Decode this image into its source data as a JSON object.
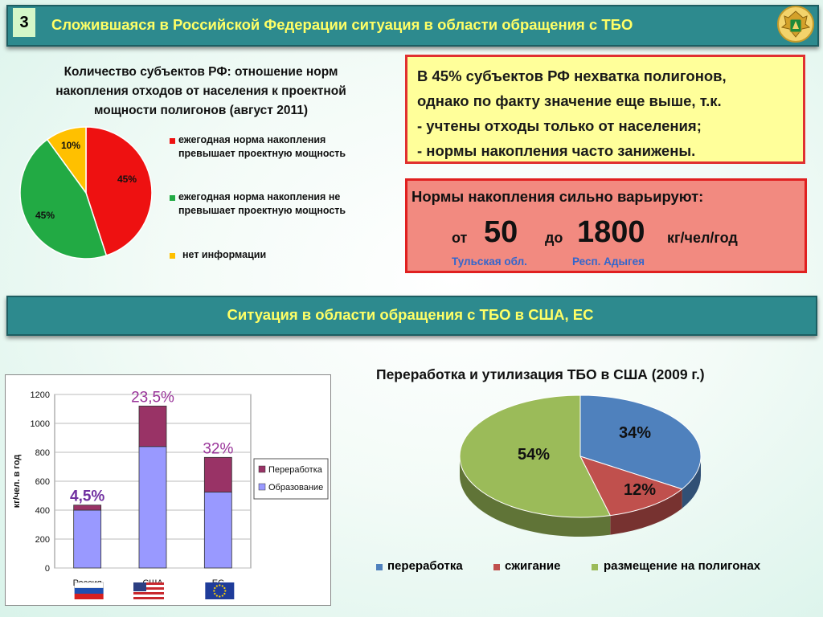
{
  "header": {
    "slide_number": "3",
    "title": "Сложившаяся в Российской Федерации ситуация в области обращения с ТБО"
  },
  "section2": {
    "title": "Ситуация в области обращения с ТБО в США, ЕС"
  },
  "russia_pie": {
    "title_lines": [
      "Количество субъектов РФ: отношение норм",
      "накопления отходов от населения к проектной",
      "мощности полигонов (август 2011)"
    ],
    "legend": [
      {
        "line1": "ежегодная норма накопления",
        "line2": "превышает  проектную мощность",
        "color": "#ee1111"
      },
      {
        "line1": "ежегодная норма накопления не",
        "line2": "превышает  проектную мощность",
        "color": "#22aa44"
      },
      {
        "line1": "нет информации",
        "line2": "",
        "color": "#ffc000"
      }
    ]
  },
  "box1": {
    "lines": [
      "В 45% субъектов РФ нехватка полигонов,",
      "однако по факту значение еще выше, т.к.",
      "- учтены отходы только от населения;",
      "- нормы накопления часто занижены."
    ]
  },
  "box2": {
    "title": "Нормы накопления сильно варьируют:",
    "from_label": "от",
    "from_value": "50",
    "to_label": "до",
    "to_value": "1800",
    "unit": "кг/чел/год",
    "region_low": "Тульская обл.",
    "region_high": "Респ. Адыгея"
  },
  "us_pie": {
    "title": "Переработка и утилизация ТБО в США (2009 г.)",
    "legend": [
      {
        "label": "переработка",
        "color": "#4f81bd"
      },
      {
        "label": "сжигание",
        "color": "#c0504d"
      },
      {
        "label": "размещение на полигонах",
        "color": "#9bbb59"
      }
    ]
  },
  "chart_data": [
    {
      "type": "pie",
      "title": "Количество субъектов РФ: отношение норм накопления отходов от населения к проектной мощности полигонов (август 2011)",
      "slices": [
        {
          "label": "ежегодная норма накопления превышает  проектную мощность",
          "value": 45,
          "display": "45%",
          "color": "#ee1111"
        },
        {
          "label": "ежегодная норма накопления не превышает  проектную мощность",
          "value": 45,
          "display": "45%",
          "color": "#22aa44"
        },
        {
          "label": "нет информации",
          "value": 10,
          "display": "10%",
          "color": "#ffc000"
        }
      ]
    },
    {
      "type": "bar",
      "stacked": true,
      "categories": [
        "Россия",
        "США",
        "ЕС"
      ],
      "series": [
        {
          "name": "Образование",
          "values": [
            400,
            840,
            525
          ],
          "color": "#9999ff"
        },
        {
          "name": "Переработка",
          "values": [
            35,
            280,
            240
          ],
          "color": "#993366"
        }
      ],
      "top_labels": [
        "4,5%",
        "23,5%",
        "32%"
      ],
      "ylabel": "кг/чел. в год",
      "ylim": [
        0,
        1200
      ],
      "yticks": [
        0,
        200,
        400,
        600,
        800,
        1000,
        1200
      ],
      "legend": [
        "Переработка",
        "Образование"
      ],
      "legend_position": "right",
      "grid": true
    },
    {
      "type": "pie",
      "style": "3d",
      "title": "Переработка и утилизация ТБО в США (2009 г.)",
      "slices": [
        {
          "label": "переработка",
          "value": 34,
          "display": "34%",
          "color": "#4f81bd"
        },
        {
          "label": "сжигание",
          "value": 12,
          "display": "12%",
          "color": "#c0504d"
        },
        {
          "label": "размещение на полигонах",
          "value": 54,
          "display": "54%",
          "color": "#9bbb59"
        }
      ],
      "legend_position": "bottom"
    }
  ]
}
